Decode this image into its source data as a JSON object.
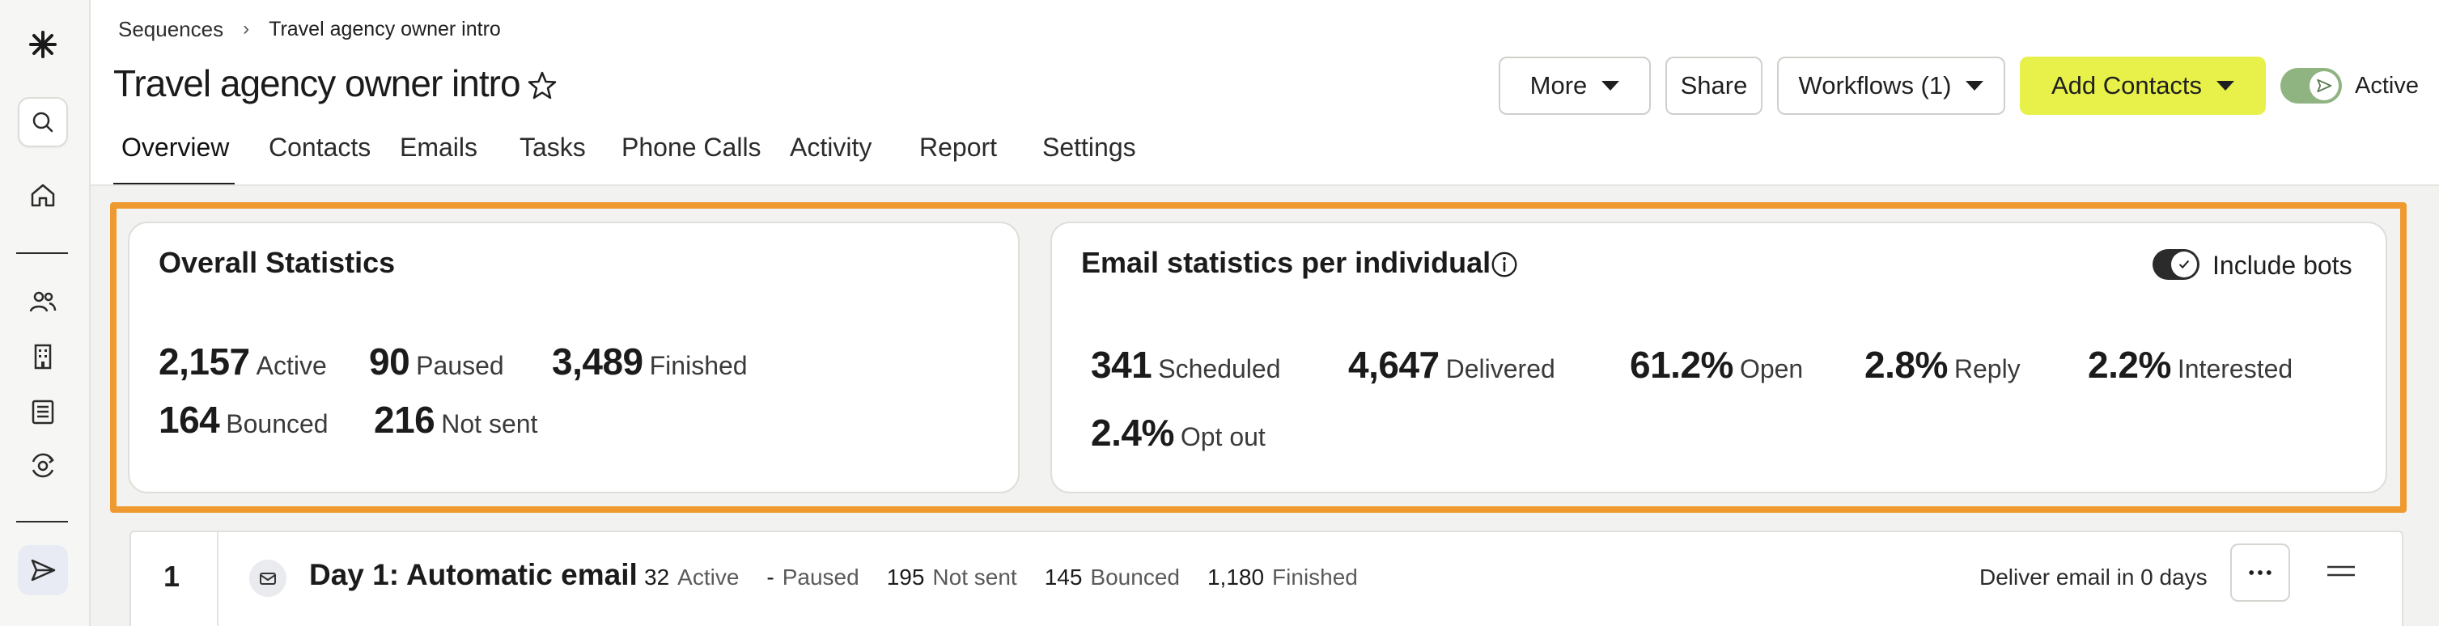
{
  "breadcrumb": {
    "parent": "Sequences",
    "current": "Travel agency owner intro"
  },
  "page": {
    "title": "Travel agency owner intro"
  },
  "header": {
    "more_label": "More",
    "share_label": "Share",
    "workflows_label": "Workflows (1)",
    "add_contacts_label": "Add Contacts",
    "active_label": "Active",
    "active_on": true
  },
  "tabs": [
    {
      "label": "Overview",
      "active": true
    },
    {
      "label": "Contacts"
    },
    {
      "label": "Emails"
    },
    {
      "label": "Tasks"
    },
    {
      "label": "Phone Calls"
    },
    {
      "label": "Activity"
    },
    {
      "label": "Report"
    },
    {
      "label": "Settings"
    }
  ],
  "overall": {
    "title": "Overall Statistics",
    "stats": [
      {
        "value": "2,157",
        "label": "Active"
      },
      {
        "value": "90",
        "label": "Paused"
      },
      {
        "value": "3,489",
        "label": "Finished"
      },
      {
        "value": "164",
        "label": "Bounced"
      },
      {
        "value": "216",
        "label": "Not sent"
      }
    ]
  },
  "email_stats": {
    "title": "Email statistics per individual",
    "include_bots_label": "Include bots",
    "include_bots_on": true,
    "stats": [
      {
        "value": "341",
        "label": "Scheduled"
      },
      {
        "value": "4,647",
        "label": "Delivered"
      },
      {
        "value": "61.2%",
        "label": "Open"
      },
      {
        "value": "2.8%",
        "label": "Reply"
      },
      {
        "value": "2.2%",
        "label": "Interested"
      },
      {
        "value": "2.4%",
        "label": "Opt out"
      }
    ]
  },
  "step": {
    "number": "1",
    "title": "Day 1: Automatic email",
    "stats": [
      {
        "value": "32",
        "label": "Active"
      },
      {
        "value": "-",
        "label": "Paused"
      },
      {
        "value": "195",
        "label": "Not sent"
      },
      {
        "value": "145",
        "label": "Bounced"
      },
      {
        "value": "1,180",
        "label": "Finished"
      }
    ],
    "deliver_text": "Deliver email in 0 days"
  },
  "colors": {
    "accent_yellow": "#e8f04a",
    "highlight_orange": "#ef9a30",
    "toggle_green": "#8fb482"
  },
  "icons": [
    "logo-asterisk-icon",
    "search-icon",
    "home-icon",
    "people-icon",
    "building-icon",
    "list-icon",
    "refresh-eye-icon",
    "send-icon",
    "star-icon",
    "info-icon",
    "mail-icon",
    "more-dots-icon",
    "drag-handle-icon"
  ]
}
